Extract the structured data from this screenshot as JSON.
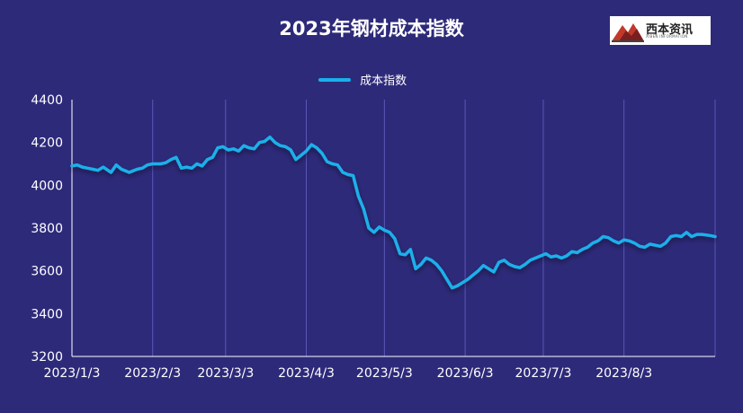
{
  "brand": {
    "logo_text": "西本资讯",
    "logo_subtext": "XIBEN INFORMATION"
  },
  "chart_data": {
    "type": "line",
    "title": "2023年钢材成本指数",
    "legend_position": "top-center",
    "grid": {
      "vertical": true,
      "horizontal": false
    },
    "ylim": [
      3200,
      4400
    ],
    "yticks": [
      3200,
      3400,
      3600,
      3800,
      4000,
      4200,
      4400
    ],
    "xlim": [
      "2023-01-03",
      "2023-09-07"
    ],
    "xtick_labels": [
      "2023/1/3",
      "2023/2/3",
      "2023/3/3",
      "2023/4/3",
      "2023/5/3",
      "2023/6/3",
      "2023/7/3",
      "2023/8/3"
    ],
    "xtick_dates": [
      "2023-01-03",
      "2023-02-03",
      "2023-03-03",
      "2023-04-03",
      "2023-05-03",
      "2023-06-03",
      "2023-07-03",
      "2023-08-03"
    ],
    "colors": {
      "line": "#1ab0ea",
      "grid": "#5b57b8",
      "background": "#2e2a7a"
    },
    "series": [
      {
        "name": "成本指数",
        "x": [
          "2023-01-03",
          "2023-01-05",
          "2023-01-07",
          "2023-01-09",
          "2023-01-11",
          "2023-01-13",
          "2023-01-15",
          "2023-01-18",
          "2023-01-20",
          "2023-01-22",
          "2023-01-25",
          "2023-01-28",
          "2023-01-30",
          "2023-02-01",
          "2023-02-03",
          "2023-02-06",
          "2023-02-08",
          "2023-02-10",
          "2023-02-12",
          "2023-02-14",
          "2023-02-16",
          "2023-02-18",
          "2023-02-20",
          "2023-02-22",
          "2023-02-24",
          "2023-02-26",
          "2023-02-28",
          "2023-03-02",
          "2023-03-04",
          "2023-03-06",
          "2023-03-08",
          "2023-03-10",
          "2023-03-12",
          "2023-03-14",
          "2023-03-16",
          "2023-03-18",
          "2023-03-20",
          "2023-03-22",
          "2023-03-24",
          "2023-03-26",
          "2023-03-28",
          "2023-03-30",
          "2023-04-01",
          "2023-04-03",
          "2023-04-05",
          "2023-04-07",
          "2023-04-09",
          "2023-04-11",
          "2023-04-13",
          "2023-04-15",
          "2023-04-17",
          "2023-04-19",
          "2023-04-21",
          "2023-04-23",
          "2023-04-25",
          "2023-04-27",
          "2023-04-29",
          "2023-05-01",
          "2023-05-03",
          "2023-05-05",
          "2023-05-07",
          "2023-05-09",
          "2023-05-11",
          "2023-05-13",
          "2023-05-15",
          "2023-05-17",
          "2023-05-19",
          "2023-05-21",
          "2023-05-23",
          "2023-05-25",
          "2023-05-27",
          "2023-05-29",
          "2023-05-31",
          "2023-06-02",
          "2023-06-04",
          "2023-06-06",
          "2023-06-08",
          "2023-06-10",
          "2023-06-12",
          "2023-06-14",
          "2023-06-16",
          "2023-06-18",
          "2023-06-20",
          "2023-06-22",
          "2023-06-24",
          "2023-06-26",
          "2023-06-28",
          "2023-06-30",
          "2023-07-02",
          "2023-07-04",
          "2023-07-06",
          "2023-07-08",
          "2023-07-10",
          "2023-07-12",
          "2023-07-14",
          "2023-07-16",
          "2023-07-18",
          "2023-07-20",
          "2023-07-22",
          "2023-07-24",
          "2023-07-26",
          "2023-07-28",
          "2023-07-30",
          "2023-08-01",
          "2023-08-03",
          "2023-08-05",
          "2023-08-07",
          "2023-08-09",
          "2023-08-11",
          "2023-08-13",
          "2023-08-15",
          "2023-08-17",
          "2023-08-19",
          "2023-08-21",
          "2023-08-23",
          "2023-08-25",
          "2023-08-27",
          "2023-08-29",
          "2023-08-31",
          "2023-09-02",
          "2023-09-05",
          "2023-09-07"
        ],
        "values": [
          4090,
          4095,
          4085,
          4080,
          4075,
          4070,
          4085,
          4060,
          4095,
          4075,
          4060,
          4075,
          4080,
          4095,
          4100,
          4100,
          4105,
          4120,
          4130,
          4080,
          4085,
          4080,
          4100,
          4090,
          4120,
          4130,
          4175,
          4180,
          4165,
          4170,
          4160,
          4185,
          4175,
          4170,
          4200,
          4205,
          4225,
          4200,
          4185,
          4180,
          4165,
          4120,
          4140,
          4160,
          4190,
          4175,
          4150,
          4110,
          4100,
          4095,
          4060,
          4050,
          4045,
          3950,
          3890,
          3800,
          3780,
          3805,
          3790,
          3780,
          3750,
          3680,
          3675,
          3700,
          3610,
          3630,
          3660,
          3650,
          3630,
          3600,
          3560,
          3520,
          3530,
          3545,
          3560,
          3580,
          3600,
          3625,
          3610,
          3595,
          3640,
          3650,
          3630,
          3620,
          3615,
          3630,
          3650,
          3660,
          3670,
          3680,
          3665,
          3670,
          3660,
          3670,
          3690,
          3685,
          3700,
          3710,
          3730,
          3740,
          3760,
          3755,
          3740,
          3730,
          3745,
          3740,
          3730,
          3715,
          3710,
          3725,
          3720,
          3715,
          3730,
          3760,
          3765,
          3760,
          3780,
          3760,
          3770,
          3770,
          3765,
          3760
        ]
      }
    ]
  }
}
